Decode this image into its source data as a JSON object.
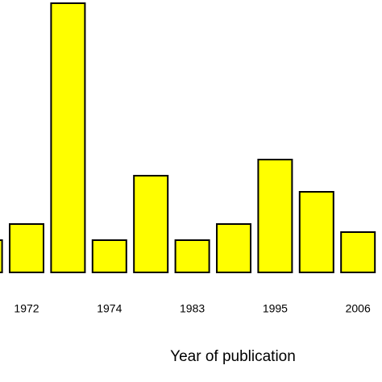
{
  "chart_data": {
    "type": "bar",
    "x_label": "Year of publication",
    "categories": [
      null,
      "1972",
      null,
      "1974",
      null,
      "1983",
      null,
      "1995",
      null,
      "2006"
    ],
    "values": [
      2,
      3,
      16.7,
      2,
      6,
      2,
      3,
      7,
      5,
      2.5
    ],
    "color": "#ffff00"
  }
}
